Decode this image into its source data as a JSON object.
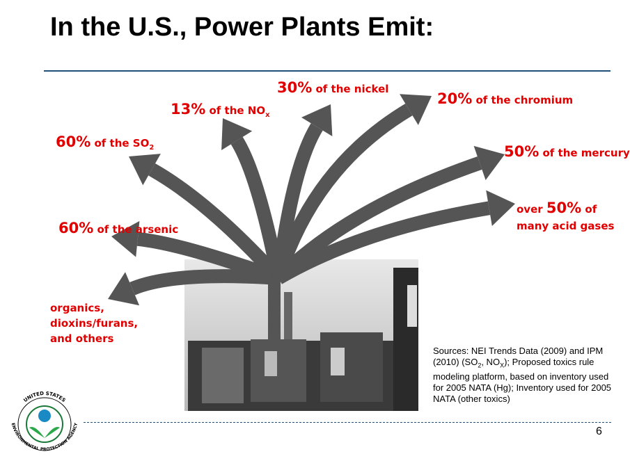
{
  "title": "In the U.S., Power Plants Emit:",
  "labels": [
    {
      "percent": "30%",
      "text": "of the nickel"
    },
    {
      "percent": "13%",
      "text": "of the NO",
      "sub": "x"
    },
    {
      "percent": "20%",
      "text": "of the chromium"
    },
    {
      "percent": "60%",
      "text": "of the SO",
      "sub": "2"
    },
    {
      "percent": "50%",
      "text": "of the mercury"
    },
    {
      "prefix": "over",
      "percent": "50%",
      "text": "of",
      "line2": "many acid gases"
    },
    {
      "percent": "60%",
      "text": "of the arsenic"
    },
    {
      "text": "organics, dioxins/furans, and others"
    }
  ],
  "sources": [
    "Sources: NEI Trends Data (2009) and IPM (2010) (SO",
    "2",
    ", NO",
    "X",
    "); Proposed toxics rule modeling platform, based on inventory used for 2005 NATA (Hg); Inventory used for 2005 NATA (other toxics)"
  ],
  "logo": {
    "top": "UNITED STATES",
    "bottom": "ENVIRONMENTAL PROTECTION AGENCY"
  },
  "page_number": "6"
}
